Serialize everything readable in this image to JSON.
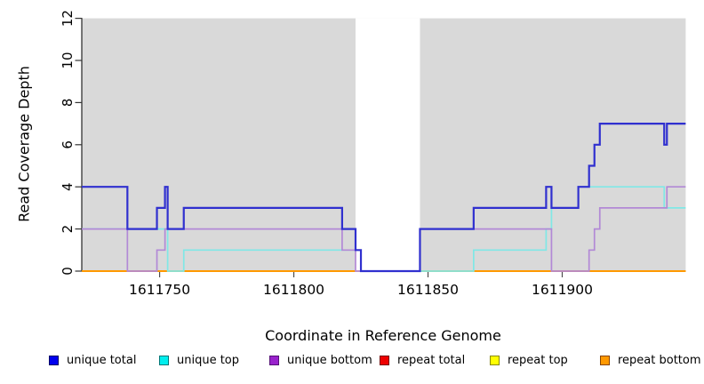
{
  "chart_data": {
    "type": "line",
    "subtype": "step-coverage-plot",
    "title": "",
    "xlabel": "Coordinate in Reference Genome",
    "ylabel": "Read Coverage Depth",
    "xlim": [
      1611721,
      1611946
    ],
    "ylim": [
      0,
      12
    ],
    "x_ticks": [
      1611750,
      1611800,
      1611850,
      1611900
    ],
    "y_ticks": [
      0,
      2,
      4,
      6,
      8,
      10,
      12
    ],
    "grid": "off",
    "plot_bg": "#d9d9d9",
    "page_bg": "#ffffff",
    "gap_region": {
      "start": 1611823,
      "end": 1611847,
      "color": "#ffffff",
      "note": "white band = masked/zero-coverage gap"
    },
    "legend_position": "bottom",
    "series": [
      {
        "name": "unique total",
        "line_color": "#3030cf",
        "width": 2.2,
        "z": 5,
        "segments": [
          [
            [
              1611721,
              4
            ],
            [
              1611738,
              2
            ],
            [
              1611749,
              3
            ],
            [
              1611752,
              4
            ],
            [
              1611753,
              2
            ],
            [
              1611759,
              3
            ],
            [
              1611818,
              2
            ],
            [
              1611823,
              1
            ],
            [
              1611825,
              0
            ],
            [
              1611847,
              2
            ],
            [
              1611867,
              3
            ],
            [
              1611894,
              4
            ],
            [
              1611896,
              3
            ],
            [
              1611906,
              4
            ],
            [
              1611910,
              5
            ],
            [
              1611912,
              6
            ],
            [
              1611914,
              7
            ],
            [
              1611938,
              6
            ],
            [
              1611939,
              7
            ],
            [
              1611946,
              7
            ]
          ]
        ]
      },
      {
        "name": "unique top",
        "line_color": "#80e8e6",
        "width": 1.7,
        "z": 3,
        "segments": [
          [
            [
              1611721,
              2
            ],
            [
              1611753,
              0
            ],
            [
              1611759,
              1
            ],
            [
              1611825,
              0
            ],
            [
              1611867,
              1
            ],
            [
              1611894,
              2
            ],
            [
              1611896,
              3
            ],
            [
              1611906,
              4
            ],
            [
              1611938,
              3
            ],
            [
              1611946,
              3
            ]
          ]
        ]
      },
      {
        "name": "unique bottom",
        "line_color": "#b289d6",
        "width": 1.7,
        "z": 4,
        "segments": [
          [
            [
              1611721,
              2
            ],
            [
              1611738,
              0
            ],
            [
              1611749,
              1
            ],
            [
              1611752,
              2
            ],
            [
              1611818,
              1
            ],
            [
              1611823,
              0
            ],
            [
              1611847,
              2
            ],
            [
              1611896,
              0
            ],
            [
              1611910,
              1
            ],
            [
              1611912,
              2
            ],
            [
              1611914,
              3
            ],
            [
              1611939,
              4
            ],
            [
              1611946,
              4
            ]
          ]
        ]
      },
      {
        "name": "repeat total",
        "line_color": "#dd2222",
        "width": 1.5,
        "z": 0,
        "segments": [
          [
            [
              1611721,
              0
            ],
            [
              1611946,
              0
            ]
          ]
        ]
      },
      {
        "name": "repeat top",
        "line_color": "#eeee22",
        "width": 1.5,
        "z": 1,
        "segments": [
          [
            [
              1611721,
              0
            ],
            [
              1611946,
              0
            ]
          ]
        ]
      },
      {
        "name": "repeat bottom",
        "line_color": "#ff9900",
        "width": 2.0,
        "z": 2,
        "segments": [
          [
            [
              1611721,
              0
            ],
            [
              1611823,
              0
            ]
          ],
          [
            [
              1611847,
              0
            ],
            [
              1611946,
              0
            ]
          ]
        ]
      }
    ]
  },
  "legend": {
    "items": [
      {
        "label": "unique total",
        "fill": "#0000ee",
        "border": "#000066"
      },
      {
        "label": "unique top",
        "fill": "#00eeee",
        "border": "#007777"
      },
      {
        "label": "unique bottom",
        "fill": "#9922cc",
        "border": "#551177"
      },
      {
        "label": "repeat total",
        "fill": "#ee0000",
        "border": "#770000"
      },
      {
        "label": "repeat top",
        "fill": "#ffff00",
        "border": "#888800"
      },
      {
        "label": "repeat bottom",
        "fill": "#ff9900",
        "border": "#884400"
      }
    ]
  }
}
